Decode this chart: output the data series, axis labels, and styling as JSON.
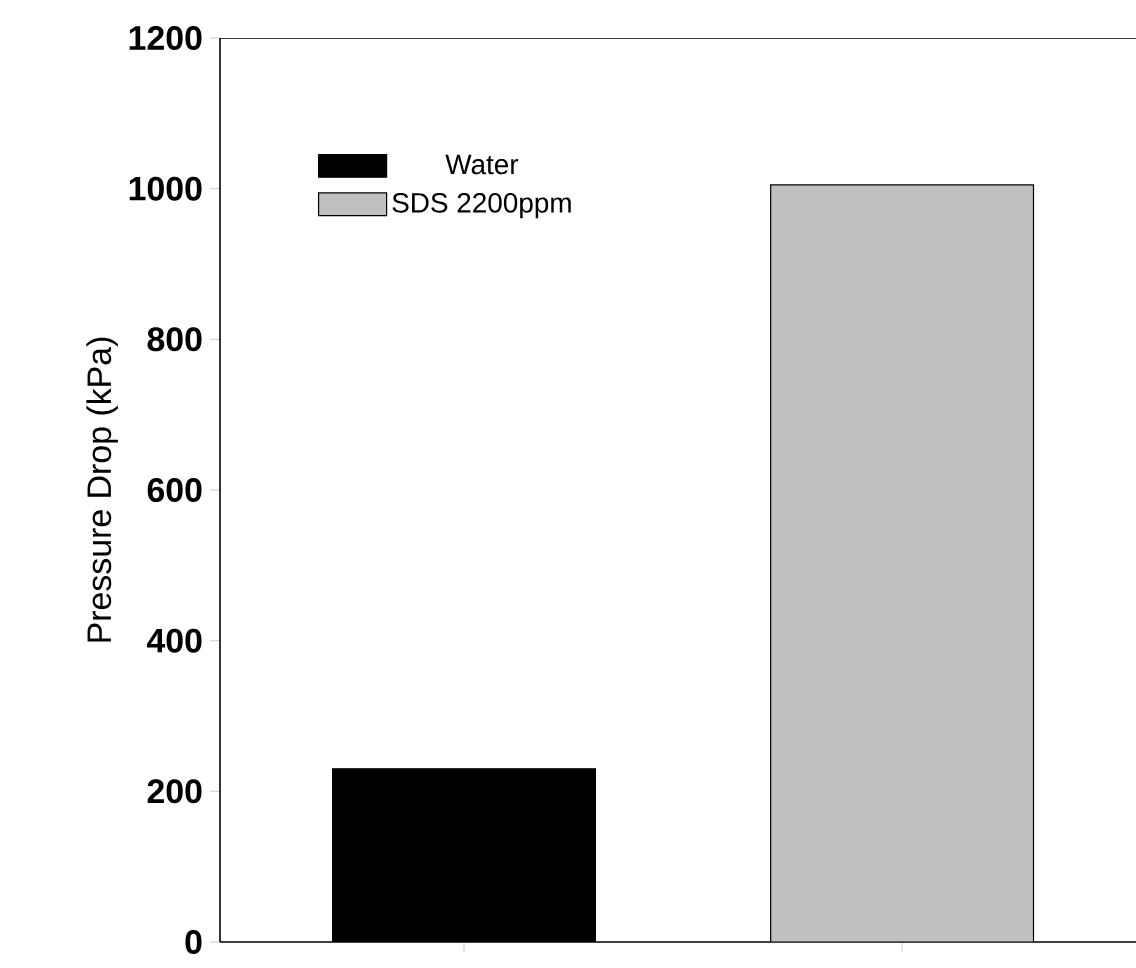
{
  "chart_data": {
    "type": "bar",
    "ylabel": "Pressure Drop (kPa)",
    "categories": [
      null,
      null
    ],
    "series": [
      {
        "name": "Water",
        "color": "#000000",
        "values": [
          230,
          null
        ]
      },
      {
        "name": "SDS 2200ppm",
        "color": "#c0c0c0",
        "values": [
          null,
          1005
        ]
      }
    ],
    "ylim": [
      0,
      1200
    ],
    "yticks": [
      0,
      200,
      400,
      600,
      800,
      1000,
      1200
    ],
    "legend": "top left"
  }
}
